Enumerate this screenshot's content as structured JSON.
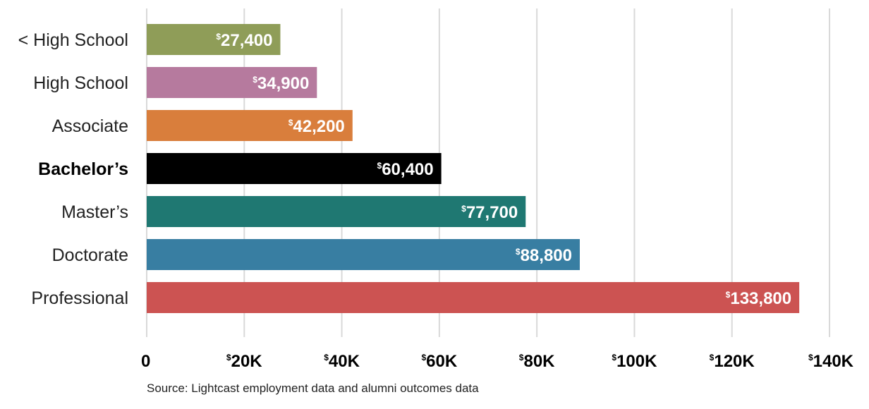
{
  "chart_data": {
    "type": "bar",
    "orientation": "horizontal",
    "categories": [
      "< High School",
      "High School",
      "Associate",
      "Bachelor’s",
      "Master’s",
      "Doctorate",
      "Professional"
    ],
    "values": [
      27400,
      34900,
      42200,
      60400,
      77700,
      88800,
      133800
    ],
    "value_labels": [
      "27,400",
      "34,900",
      "42,200",
      "60,400",
      "77,700",
      "88,800",
      "133,800"
    ],
    "currency_symbol": "$",
    "bar_colors": [
      "#8f9d58",
      "#b67a9e",
      "#d97e3c",
      "#000000",
      "#1f7872",
      "#387ea2",
      "#cc5352"
    ],
    "label_colors": [
      "#ffffff",
      "#ffffff",
      "#ffffff",
      "#f6c719",
      "#ffffff",
      "#ffffff",
      "#ffffff"
    ],
    "highlight_category": "Bachelor’s",
    "xlim": [
      0,
      140000
    ],
    "xticks": [
      0,
      20000,
      40000,
      60000,
      80000,
      100000,
      120000,
      140000
    ],
    "xtick_labels": [
      {
        "prefix": "",
        "text": "0"
      },
      {
        "prefix": "$",
        "text": "20K"
      },
      {
        "prefix": "$",
        "text": "40K"
      },
      {
        "prefix": "$",
        "text": "60K"
      },
      {
        "prefix": "$",
        "text": "80K"
      },
      {
        "prefix": "$",
        "text": "100K"
      },
      {
        "prefix": "$",
        "text": "120K"
      },
      {
        "prefix": "$",
        "text": "140K"
      }
    ],
    "grid": true,
    "title": "",
    "xlabel": "",
    "ylabel": ""
  },
  "source": "Source: Lightcast employment data and alumni outcomes data"
}
